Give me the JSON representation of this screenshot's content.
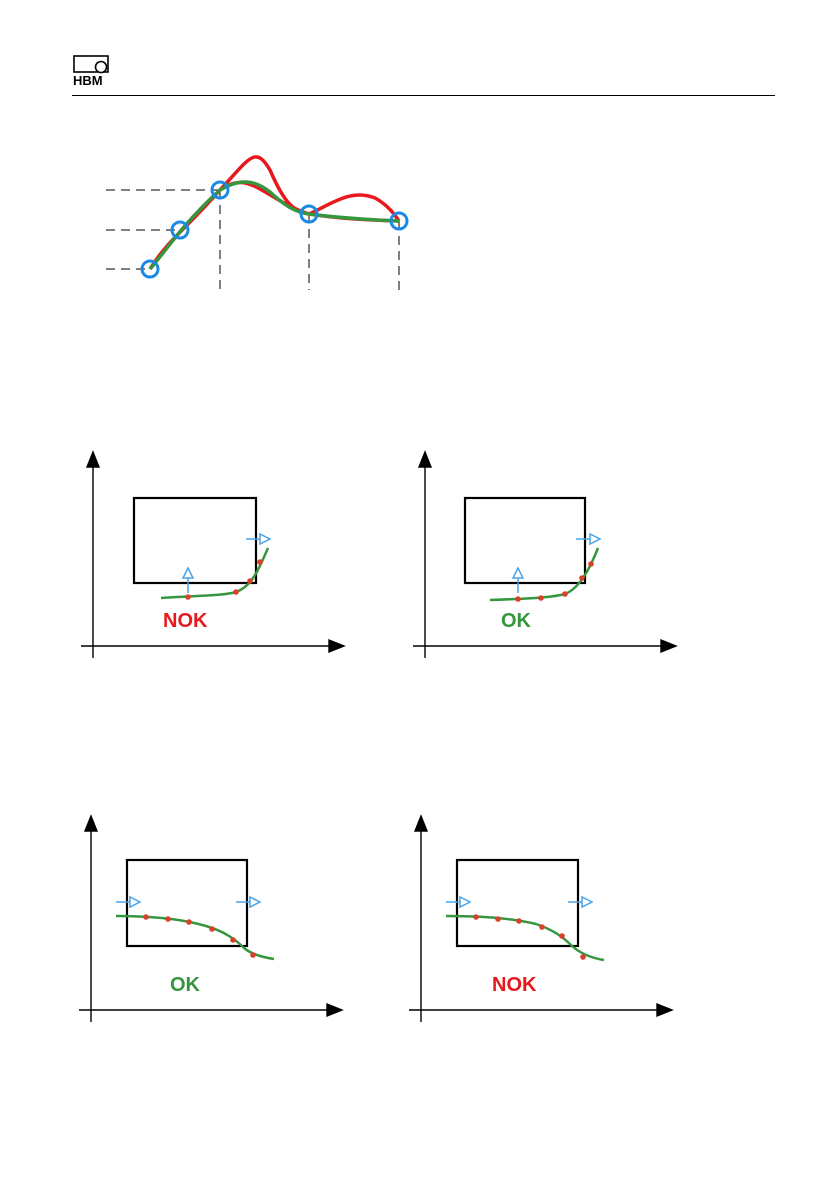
{
  "header": {
    "logo_text": "HBM"
  },
  "colors": {
    "red": "#e8191e",
    "green": "#36963e",
    "blue": "#1a8ae6",
    "light_blue": "#4aa3e8",
    "point": "#d8402a",
    "ink": "#000000"
  },
  "icons": {
    "logo": "hbm-logo-icon",
    "crossing_arrow": "arrow-right-icon",
    "entry_arrow": "arrow-up-icon"
  },
  "panels": [
    {
      "verdict": "NOK",
      "verdict_color": "#e8191e"
    },
    {
      "verdict": "OK",
      "verdict_color": "#36963e"
    },
    {
      "verdict": "OK",
      "verdict_color": "#36963e"
    },
    {
      "verdict": "NOK",
      "verdict_color": "#e8191e"
    }
  ]
}
